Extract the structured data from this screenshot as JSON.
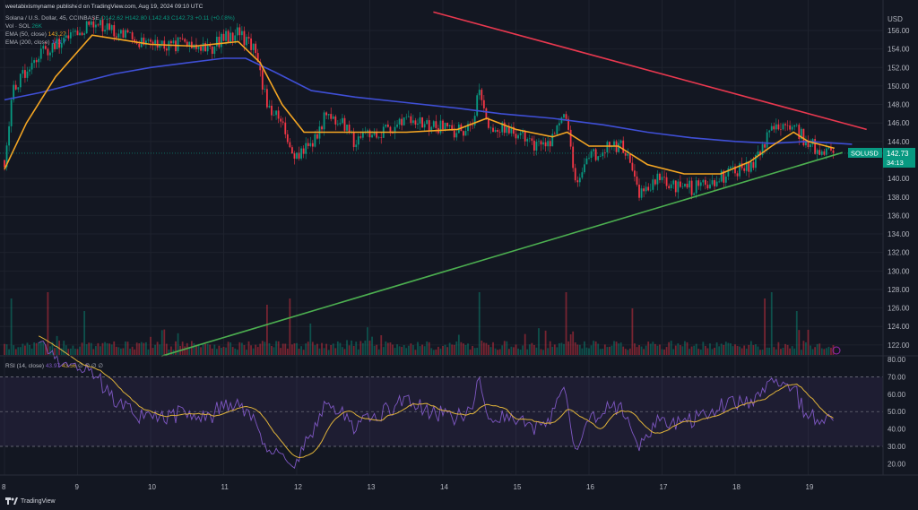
{
  "header": {
    "published": "weetabixismyname published on TradingView.com, Aug 19, 2024 09:10 UTC",
    "symbol_line": "Solana / U.S. Dollar, 45, COINBASE",
    "open": "O142.62",
    "high": "H142.80",
    "low": "L142.43",
    "close": "C142.73",
    "change": "+0.11 (+0.08%)",
    "vol_label": "Vol · SOL",
    "vol_value": "26K",
    "ema50_label": "EMA (50, close)",
    "ema50_value": "143.27",
    "ema200_label": "EMA (200, close)",
    "ema200_value": "143.7",
    "rsi_label": "RSI (14, close)",
    "rsi_value": "43.97",
    "rsi_ma_value": "43.56",
    "rsi_extra": "∅ ∅ ∅ ∅"
  },
  "price_axis": {
    "currency": "USD",
    "symbol_tag": "SOLUSD",
    "last_price": "142.73",
    "countdown": "34:13"
  },
  "footer": {
    "brand": "TradingView"
  },
  "colors": {
    "up": "#089981",
    "down": "#f23645",
    "ema50": "#f5a623",
    "ema200": "#3f4fd6",
    "resistance": "#e8384f",
    "support": "#4caf50",
    "rsi": "#7e57c2",
    "rsi_ma": "#e0b33a",
    "background": "#131722"
  },
  "chart_data": {
    "type": "candlestick",
    "interval": "45",
    "x_ticks": [
      "8",
      "9",
      "10",
      "11",
      "12",
      "13",
      "14",
      "15",
      "16",
      "17",
      "18",
      "19"
    ],
    "x_tick_days": [
      8,
      9,
      10,
      11,
      12,
      13,
      14,
      15,
      16,
      17,
      18,
      19
    ],
    "price_ticks": [
      156,
      154,
      152,
      150,
      148,
      146,
      144,
      140,
      138,
      136,
      134,
      132,
      130,
      128,
      126,
      124,
      122
    ],
    "ylim": [
      121,
      157.5
    ],
    "close_path": [
      [
        8.0,
        142
      ],
      [
        8.1,
        149
      ],
      [
        8.4,
        153
      ],
      [
        8.9,
        155.5
      ],
      [
        9.2,
        157
      ],
      [
        9.6,
        155.5
      ],
      [
        10.0,
        154.2
      ],
      [
        10.5,
        154.6
      ],
      [
        10.8,
        154
      ],
      [
        11.2,
        156
      ],
      [
        11.4,
        154
      ],
      [
        11.6,
        148
      ],
      [
        11.8,
        146
      ],
      [
        11.95,
        142
      ],
      [
        12.2,
        143.5
      ],
      [
        12.4,
        147
      ],
      [
        12.6,
        146
      ],
      [
        12.8,
        144
      ],
      [
        13.2,
        145
      ],
      [
        13.5,
        146
      ],
      [
        13.8,
        146
      ],
      [
        14.2,
        145
      ],
      [
        14.4,
        146
      ],
      [
        14.5,
        150
      ],
      [
        14.6,
        146
      ],
      [
        14.9,
        145
      ],
      [
        15.2,
        144
      ],
      [
        15.4,
        143
      ],
      [
        15.7,
        147
      ],
      [
        15.8,
        139.5
      ],
      [
        16.0,
        142
      ],
      [
        16.3,
        144
      ],
      [
        16.5,
        143
      ],
      [
        16.7,
        138
      ],
      [
        16.9,
        140
      ],
      [
        17.2,
        139
      ],
      [
        17.5,
        139
      ],
      [
        17.8,
        140
      ],
      [
        18.1,
        141
      ],
      [
        18.3,
        142
      ],
      [
        18.5,
        146
      ],
      [
        18.8,
        146
      ],
      [
        18.95,
        144
      ],
      [
        19.2,
        143
      ],
      [
        19.36,
        142.73
      ]
    ],
    "ema50": [
      [
        8.0,
        141
      ],
      [
        8.3,
        146
      ],
      [
        8.7,
        151
      ],
      [
        9.2,
        155.5
      ],
      [
        9.6,
        155
      ],
      [
        10.0,
        154.5
      ],
      [
        10.6,
        154.3
      ],
      [
        11.2,
        154.8
      ],
      [
        11.5,
        152.5
      ],
      [
        11.8,
        148
      ],
      [
        12.1,
        145
      ],
      [
        12.4,
        145
      ],
      [
        12.8,
        145
      ],
      [
        13.5,
        145
      ],
      [
        14.2,
        145.3
      ],
      [
        14.6,
        146.5
      ],
      [
        15.0,
        145.3
      ],
      [
        15.5,
        144.5
      ],
      [
        15.7,
        145
      ],
      [
        16.0,
        143.5
      ],
      [
        16.4,
        143.5
      ],
      [
        16.8,
        141.5
      ],
      [
        17.3,
        140.5
      ],
      [
        17.8,
        140.5
      ],
      [
        18.2,
        141.8
      ],
      [
        18.5,
        143.5
      ],
      [
        18.8,
        145
      ],
      [
        19.0,
        144
      ],
      [
        19.36,
        143.27
      ]
    ],
    "ema200": [
      [
        8.0,
        148.5
      ],
      [
        8.5,
        149.3
      ],
      [
        9.0,
        150.3
      ],
      [
        9.5,
        151.3
      ],
      [
        10.0,
        152
      ],
      [
        10.5,
        152.5
      ],
      [
        11.0,
        153
      ],
      [
        11.3,
        153
      ],
      [
        11.7,
        151.5
      ],
      [
        12.2,
        149.5
      ],
      [
        12.8,
        148.8
      ],
      [
        13.5,
        148.2
      ],
      [
        14.2,
        147.6
      ],
      [
        14.8,
        147
      ],
      [
        15.5,
        146.5
      ],
      [
        16.2,
        145.8
      ],
      [
        16.8,
        145
      ],
      [
        17.4,
        144.4
      ],
      [
        18.0,
        144
      ],
      [
        18.5,
        143.8
      ],
      [
        19.0,
        144
      ],
      [
        19.6,
        143.7
      ]
    ],
    "resistance_line": [
      [
        13.87,
        158
      ],
      [
        19.8,
        145.3
      ]
    ],
    "support_line": [
      [
        10.15,
        120.8
      ],
      [
        19.47,
        142.8
      ]
    ],
    "volume_spikes": [
      [
        8.1,
        0.9
      ],
      [
        8.6,
        1.0
      ],
      [
        9.1,
        0.7
      ],
      [
        11.6,
        0.8
      ],
      [
        11.9,
        0.9
      ],
      [
        12.2,
        0.5
      ],
      [
        14.5,
        1.0
      ],
      [
        15.7,
        1.0
      ],
      [
        16.6,
        0.7
      ],
      [
        18.4,
        0.9
      ],
      [
        18.5,
        1.0
      ],
      [
        18.85,
        0.7
      ]
    ],
    "rsi_ticks": [
      80,
      70,
      60,
      50,
      40,
      30,
      20
    ],
    "rsi_bands": [
      70,
      50,
      30
    ]
  }
}
